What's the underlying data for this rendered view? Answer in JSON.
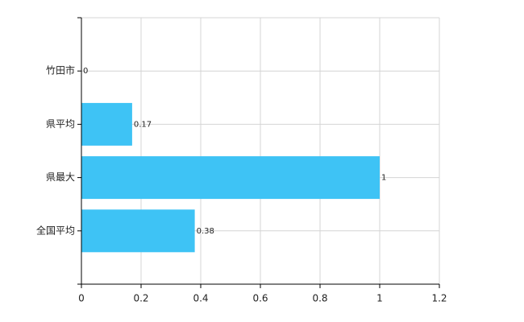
{
  "chart_data": {
    "type": "hbar",
    "categories": [
      "竹田市",
      "県平均",
      "県最大",
      "全国平均"
    ],
    "values": [
      0,
      0.17,
      1,
      0.38
    ],
    "color": "#3ec3f5",
    "xlim": [
      0,
      1.2
    ],
    "xticks": [
      0,
      0.2,
      0.4,
      0.6,
      0.8,
      1,
      1.2
    ],
    "grid": true
  }
}
